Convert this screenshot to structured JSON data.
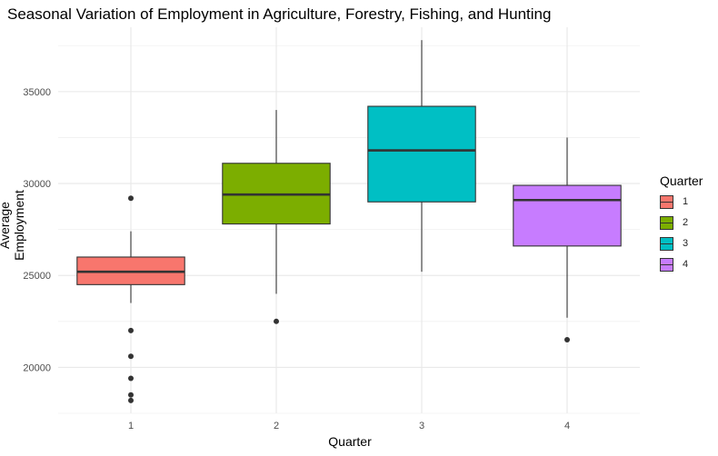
{
  "chart_data": {
    "type": "boxplot",
    "title": "Seasonal Variation of Employment in Agriculture, Forestry, Fishing, and Hunting",
    "xlabel": "Quarter",
    "ylabel": "Average Employment",
    "categories": [
      "1",
      "2",
      "3",
      "4"
    ],
    "y_ticks": [
      20000,
      25000,
      30000,
      35000
    ],
    "y_tick_labels": [
      "20000",
      "25000",
      "30000",
      "35000"
    ],
    "ylim": [
      17500,
      38500
    ],
    "grid": true,
    "legend": {
      "title": "Quarter",
      "placement": "right",
      "entries": [
        "1",
        "2",
        "3",
        "4"
      ]
    },
    "boxes": [
      {
        "quarter": "1",
        "whisker_low": 23500,
        "q1": 24500,
        "median": 25200,
        "q3": 26000,
        "whisker_high": 27400,
        "outliers": [
          29200,
          22000,
          20600,
          19400,
          18500,
          18200
        ],
        "color": "#F8766D"
      },
      {
        "quarter": "2",
        "whisker_low": 24000,
        "q1": 27800,
        "median": 29400,
        "q3": 31100,
        "whisker_high": 34000,
        "outliers": [
          22500
        ],
        "color": "#7CAE00"
      },
      {
        "quarter": "3",
        "whisker_low": 25200,
        "q1": 29000,
        "median": 31800,
        "q3": 34200,
        "whisker_high": 37800,
        "outliers": [],
        "color": "#00BFC4"
      },
      {
        "quarter": "4",
        "whisker_low": 22700,
        "q1": 26600,
        "median": 29100,
        "q3": 29900,
        "whisker_high": 32500,
        "outliers": [
          21500
        ],
        "color": "#C77CFF"
      }
    ]
  }
}
